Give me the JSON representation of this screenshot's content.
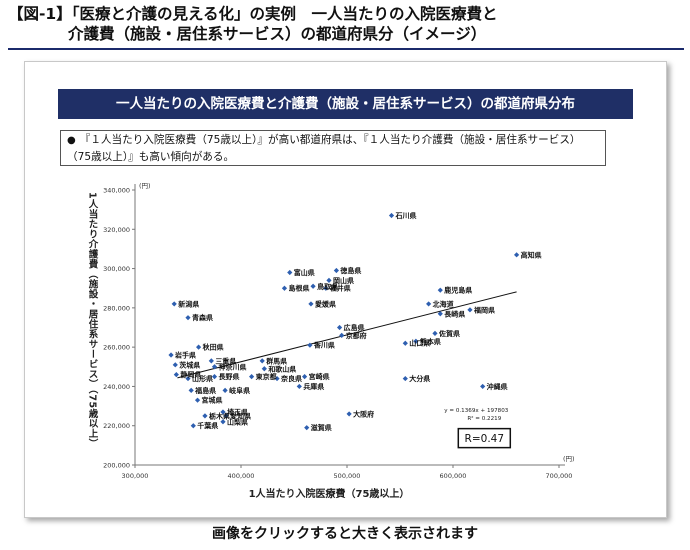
{
  "header": {
    "line1": "【図-1】「医療と介護の見える化」の実例　一人当たりの入院医療費と",
    "line2": "介護費（施設・居住系サービス）の都道府県分（イメージ）"
  },
  "slide": {
    "banner": "一人当たりの入院医療費と介護費（施設・居住系サービス）の都道府県分布",
    "note": "『１人当たり入院医療費（75歳以上）』が高い都道府県は、『１人当たり介護費（施設・居住系サービス）（75歳以上）』も高い傾向がある。",
    "bullet": "●"
  },
  "caption": "画像をクリックすると大きく表示されます",
  "chart_data": {
    "type": "scatter",
    "xlabel": "1人当たり入院医療費（75歳以上）",
    "ylabel": "1人当たり介護費（施設・居住系サービス）（75歳以上）",
    "x_unit": "(円)",
    "y_unit": "(円)",
    "xlim": [
      300000,
      700000
    ],
    "ylim": [
      200000,
      340000
    ],
    "x_ticks": [
      300000,
      400000,
      500000,
      600000,
      700000
    ],
    "y_ticks": [
      200000,
      220000,
      240000,
      260000,
      280000,
      300000,
      320000,
      340000
    ],
    "x_tick_labels": [
      "300,000",
      "400,000",
      "500,000",
      "600,000",
      "700,000"
    ],
    "y_tick_labels": [
      "200,000",
      "220,000",
      "240,000",
      "260,000",
      "280,000",
      "300,000",
      "320,000",
      "340,000"
    ],
    "marker_color": "#2e5fb0",
    "trend": {
      "slope": 0.1369,
      "intercept": 197803,
      "x_range": [
        340000,
        660000
      ]
    },
    "equation": "y = 0.1369x + 197803",
    "r_squared": "R² = 0.2219",
    "r_label": "R=0.47",
    "points": [
      {
        "label": "石川県",
        "x": 542000,
        "y": 327000
      },
      {
        "label": "高知県",
        "x": 660000,
        "y": 307000
      },
      {
        "label": "徳島県",
        "x": 490000,
        "y": 299000
      },
      {
        "label": "富山県",
        "x": 446000,
        "y": 298000
      },
      {
        "label": "岡山県",
        "x": 483000,
        "y": 294000
      },
      {
        "label": "鳥取県",
        "x": 468000,
        "y": 291000
      },
      {
        "label": "島根県",
        "x": 441000,
        "y": 290000
      },
      {
        "label": "福井県",
        "x": 480000,
        "y": 290000
      },
      {
        "label": "鹿児島県",
        "x": 588000,
        "y": 289000
      },
      {
        "label": "新潟県",
        "x": 337000,
        "y": 282000
      },
      {
        "label": "愛媛県",
        "x": 466000,
        "y": 282000
      },
      {
        "label": "北海道",
        "x": 577000,
        "y": 282000
      },
      {
        "label": "福岡県",
        "x": 616000,
        "y": 279000
      },
      {
        "label": "長崎県",
        "x": 588000,
        "y": 277000
      },
      {
        "label": "青森県",
        "x": 350000,
        "y": 275000
      },
      {
        "label": "広島県",
        "x": 493000,
        "y": 270000
      },
      {
        "label": "京都府",
        "x": 495000,
        "y": 266000
      },
      {
        "label": "佐賀県",
        "x": 583000,
        "y": 267000
      },
      {
        "label": "熊本県",
        "x": 565000,
        "y": 263000
      },
      {
        "label": "香川県",
        "x": 465000,
        "y": 261000
      },
      {
        "label": "山口県",
        "x": 555000,
        "y": 262000
      },
      {
        "label": "秋田県",
        "x": 360000,
        "y": 260000
      },
      {
        "label": "岩手県",
        "x": 334000,
        "y": 256000
      },
      {
        "label": "三重県",
        "x": 372000,
        "y": 253000
      },
      {
        "label": "群馬県",
        "x": 420000,
        "y": 253000
      },
      {
        "label": "茨城県",
        "x": 338000,
        "y": 251000
      },
      {
        "label": "神奈川県",
        "x": 375000,
        "y": 250000
      },
      {
        "label": "和歌山県",
        "x": 422000,
        "y": 249000
      },
      {
        "label": "静岡県",
        "x": 339000,
        "y": 246000
      },
      {
        "label": "山形県",
        "x": 350000,
        "y": 244000
      },
      {
        "label": "長野県",
        "x": 375000,
        "y": 245000
      },
      {
        "label": "東京都",
        "x": 410000,
        "y": 245000
      },
      {
        "label": "奈良県",
        "x": 434000,
        "y": 244000
      },
      {
        "label": "宮崎県",
        "x": 460000,
        "y": 245000
      },
      {
        "label": "大分県",
        "x": 555000,
        "y": 244000
      },
      {
        "label": "兵庫県",
        "x": 455000,
        "y": 240000
      },
      {
        "label": "沖縄県",
        "x": 628000,
        "y": 240000
      },
      {
        "label": "福島県",
        "x": 353000,
        "y": 238000
      },
      {
        "label": "岐阜県",
        "x": 385000,
        "y": 238000
      },
      {
        "label": "宮城県",
        "x": 359000,
        "y": 233000
      },
      {
        "label": "埼玉県",
        "x": 383000,
        "y": 227000
      },
      {
        "label": "大阪府",
        "x": 502000,
        "y": 226000
      },
      {
        "label": "栃木県",
        "x": 366000,
        "y": 225000
      },
      {
        "label": "愛知県",
        "x": 386000,
        "y": 225000
      },
      {
        "label": "山梨県",
        "x": 383000,
        "y": 222000
      },
      {
        "label": "千葉県",
        "x": 355000,
        "y": 220000
      },
      {
        "label": "滋賀県",
        "x": 462000,
        "y": 219000
      }
    ]
  }
}
